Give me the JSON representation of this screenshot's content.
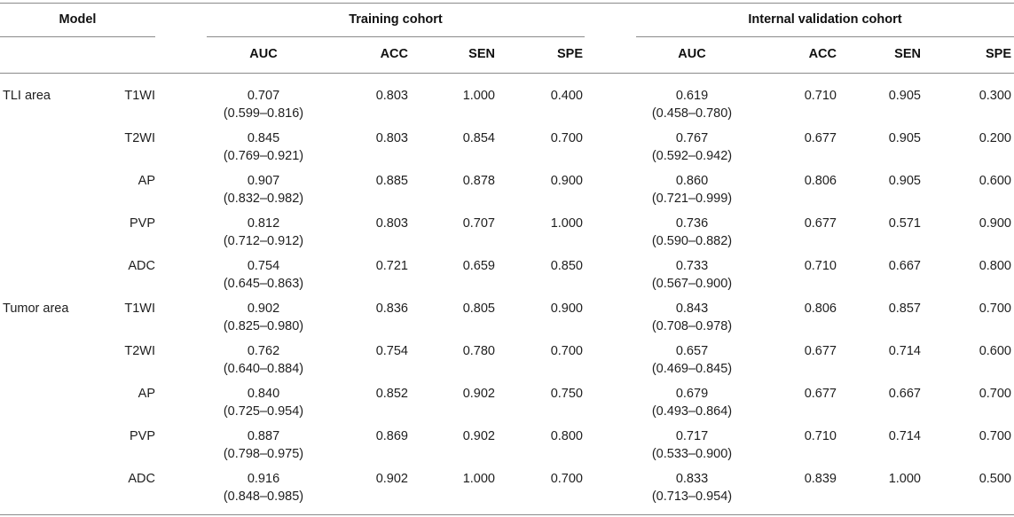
{
  "header": {
    "model": "Model",
    "training": "Training cohort",
    "validation": "Internal validation cohort",
    "metrics": [
      "AUC",
      "ACC",
      "SEN",
      "SPE"
    ]
  },
  "groups": [
    {
      "label": "TLI area",
      "rows": [
        {
          "seq": "T1WI",
          "train": {
            "auc": "0.707",
            "ci": "(0.599–0.816)",
            "acc": "0.803",
            "sen": "1.000",
            "spe": "0.400"
          },
          "val": {
            "auc": "0.619",
            "ci": "(0.458–0.780)",
            "acc": "0.710",
            "sen": "0.905",
            "spe": "0.300"
          }
        },
        {
          "seq": "T2WI",
          "train": {
            "auc": "0.845",
            "ci": "(0.769–0.921)",
            "acc": "0.803",
            "sen": "0.854",
            "spe": "0.700"
          },
          "val": {
            "auc": "0.767",
            "ci": "(0.592–0.942)",
            "acc": "0.677",
            "sen": "0.905",
            "spe": "0.200"
          }
        },
        {
          "seq": "AP",
          "train": {
            "auc": "0.907",
            "ci": "(0.832–0.982)",
            "acc": "0.885",
            "sen": "0.878",
            "spe": "0.900"
          },
          "val": {
            "auc": "0.860",
            "ci": "(0.721–0.999)",
            "acc": "0.806",
            "sen": "0.905",
            "spe": "0.600"
          }
        },
        {
          "seq": "PVP",
          "train": {
            "auc": "0.812",
            "ci": "(0.712–0.912)",
            "acc": "0.803",
            "sen": "0.707",
            "spe": "1.000"
          },
          "val": {
            "auc": "0.736",
            "ci": "(0.590–0.882)",
            "acc": "0.677",
            "sen": "0.571",
            "spe": "0.900"
          }
        },
        {
          "seq": "ADC",
          "train": {
            "auc": "0.754",
            "ci": "(0.645–0.863)",
            "acc": "0.721",
            "sen": "0.659",
            "spe": "0.850"
          },
          "val": {
            "auc": "0.733",
            "ci": "(0.567–0.900)",
            "acc": "0.710",
            "sen": "0.667",
            "spe": "0.800"
          }
        }
      ]
    },
    {
      "label": "Tumor area",
      "rows": [
        {
          "seq": "T1WI",
          "train": {
            "auc": "0.902",
            "ci": "(0.825–0.980)",
            "acc": "0.836",
            "sen": "0.805",
            "spe": "0.900"
          },
          "val": {
            "auc": "0.843",
            "ci": "(0.708–0.978)",
            "acc": "0.806",
            "sen": "0.857",
            "spe": "0.700"
          }
        },
        {
          "seq": "T2WI",
          "train": {
            "auc": "0.762",
            "ci": "(0.640–0.884)",
            "acc": "0.754",
            "sen": "0.780",
            "spe": "0.700"
          },
          "val": {
            "auc": "0.657",
            "ci": "(0.469–0.845)",
            "acc": "0.677",
            "sen": "0.714",
            "spe": "0.600"
          }
        },
        {
          "seq": "AP",
          "train": {
            "auc": "0.840",
            "ci": "(0.725–0.954)",
            "acc": "0.852",
            "sen": "0.902",
            "spe": "0.750"
          },
          "val": {
            "auc": "0.679",
            "ci": "(0.493–0.864)",
            "acc": "0.677",
            "sen": "0.667",
            "spe": "0.700"
          }
        },
        {
          "seq": "PVP",
          "train": {
            "auc": "0.887",
            "ci": "(0.798–0.975)",
            "acc": "0.869",
            "sen": "0.902",
            "spe": "0.800"
          },
          "val": {
            "auc": "0.717",
            "ci": "(0.533–0.900)",
            "acc": "0.710",
            "sen": "0.714",
            "spe": "0.700"
          }
        },
        {
          "seq": "ADC",
          "train": {
            "auc": "0.916",
            "ci": "(0.848–0.985)",
            "acc": "0.902",
            "sen": "1.000",
            "spe": "0.700"
          },
          "val": {
            "auc": "0.833",
            "ci": "(0.713–0.954)",
            "acc": "0.839",
            "sen": "1.000",
            "spe": "0.500"
          }
        }
      ]
    }
  ]
}
